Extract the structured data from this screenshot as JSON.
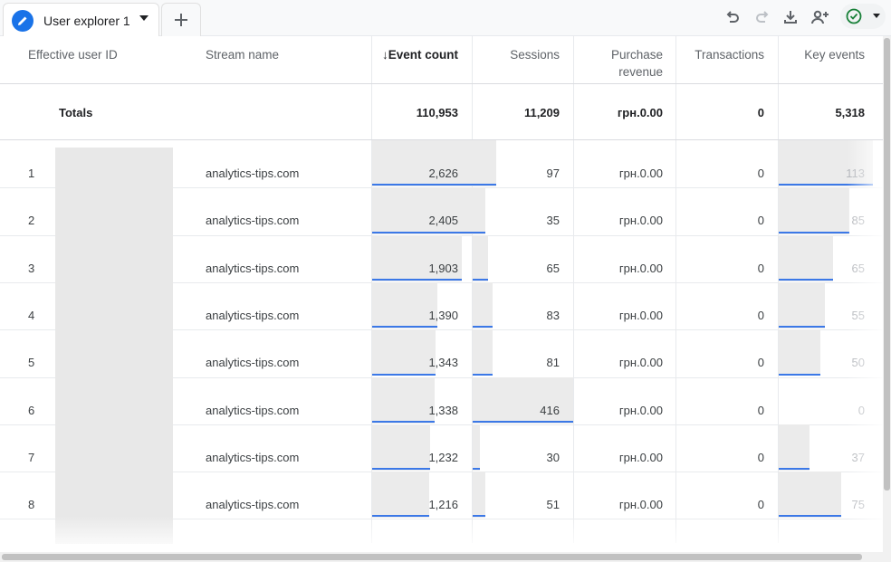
{
  "tab": {
    "label": "User explorer 1",
    "add_label": "+"
  },
  "icons": {
    "tab": "pencil-icon",
    "undo": "undo-icon",
    "redo": "redo-icon",
    "download": "download-icon",
    "share": "share-user-icon",
    "status": "check-circle-icon",
    "accent": "#1a73e8",
    "status_color": "#188038"
  },
  "columns": {
    "user_id": "Effective user ID",
    "stream": "Stream name",
    "event_count": "↓Event count",
    "sessions": "Sessions",
    "purchase_revenue_1": "Purchase",
    "purchase_revenue_2": "revenue",
    "transactions": "Transactions",
    "key_events": "Key events"
  },
  "totals": {
    "label": "Totals",
    "event_count": "110,953",
    "sessions": "11,209",
    "purchase_revenue": "грн.0.00",
    "transactions": "0",
    "key_events": "5,318"
  },
  "bar_scale": {
    "event_count_max": 2626,
    "sessions_max": 416,
    "key_events_max": 113
  },
  "rows": [
    {
      "index": "1",
      "stream": "analytics-tips.com",
      "event_count": "2,626",
      "event_value": 2626,
      "sessions": "97",
      "sessions_value": 97,
      "purchase_revenue": "грн.0.00",
      "transactions": "0",
      "key_events": "113",
      "key_value": 113
    },
    {
      "index": "2",
      "stream": "analytics-tips.com",
      "event_count": "2,405",
      "event_value": 2405,
      "sessions": "35",
      "sessions_value": 35,
      "purchase_revenue": "грн.0.00",
      "transactions": "0",
      "key_events": "85",
      "key_value": 85
    },
    {
      "index": "3",
      "stream": "analytics-tips.com",
      "event_count": "1,903",
      "event_value": 1903,
      "sessions": "65",
      "sessions_value": 65,
      "purchase_revenue": "грн.0.00",
      "transactions": "0",
      "key_events": "65",
      "key_value": 65
    },
    {
      "index": "4",
      "stream": "analytics-tips.com",
      "event_count": "1,390",
      "event_value": 1390,
      "sessions": "83",
      "sessions_value": 83,
      "purchase_revenue": "грн.0.00",
      "transactions": "0",
      "key_events": "55",
      "key_value": 55
    },
    {
      "index": "5",
      "stream": "analytics-tips.com",
      "event_count": "1,343",
      "event_value": 1343,
      "sessions": "81",
      "sessions_value": 81,
      "purchase_revenue": "грн.0.00",
      "transactions": "0",
      "key_events": "50",
      "key_value": 50
    },
    {
      "index": "6",
      "stream": "analytics-tips.com",
      "event_count": "1,338",
      "event_value": 1338,
      "sessions": "416",
      "sessions_value": 416,
      "purchase_revenue": "грн.0.00",
      "transactions": "0",
      "key_events": "0",
      "key_value": 0
    },
    {
      "index": "7",
      "stream": "analytics-tips.com",
      "event_count": "1,232",
      "event_value": 1232,
      "sessions": "30",
      "sessions_value": 30,
      "purchase_revenue": "грн.0.00",
      "transactions": "0",
      "key_events": "37",
      "key_value": 37
    },
    {
      "index": "8",
      "stream": "analytics-tips.com",
      "event_count": "1,216",
      "event_value": 1216,
      "sessions": "51",
      "sessions_value": 51,
      "purchase_revenue": "грн.0.00",
      "transactions": "0",
      "key_events": "75",
      "key_value": 75
    }
  ]
}
